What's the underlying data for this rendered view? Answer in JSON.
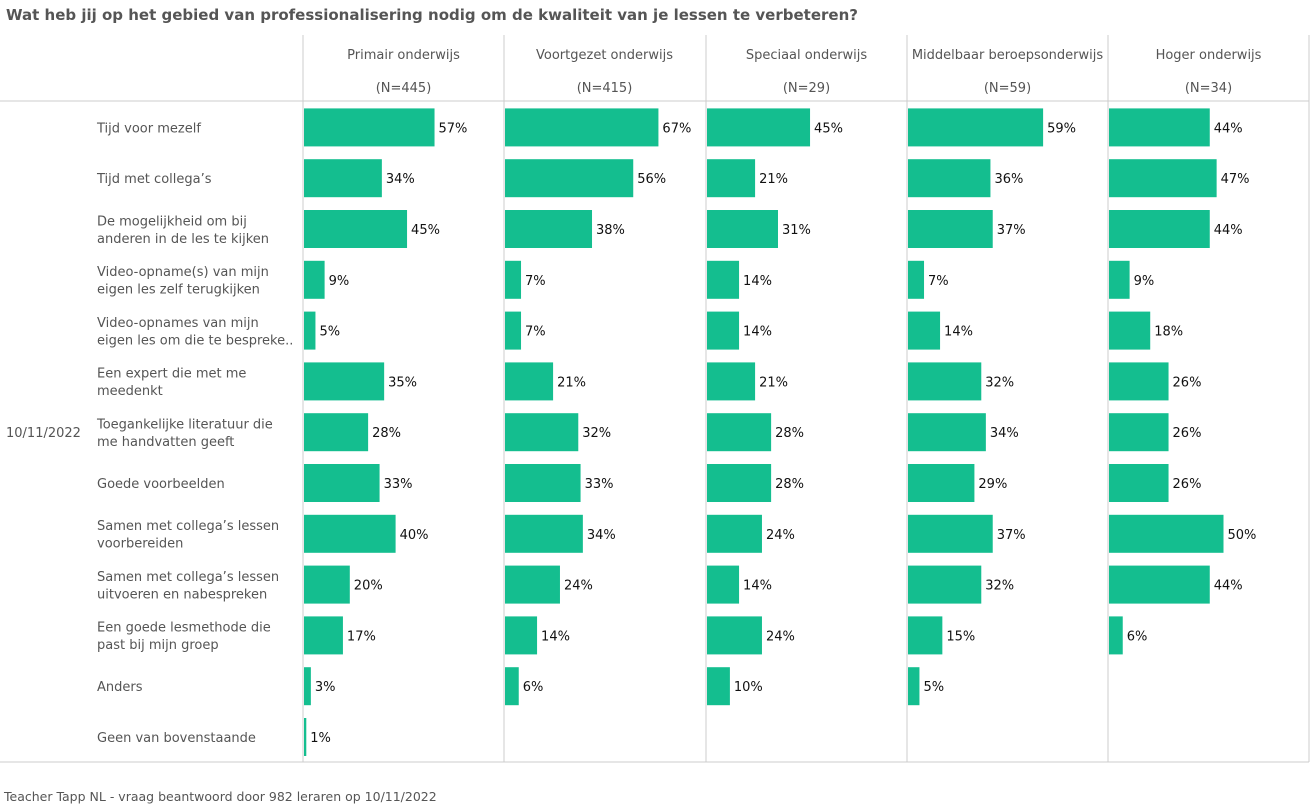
{
  "title": "Wat heb jij op het gebied van professionalisering nodig om de kwaliteit van je lessen te verbeteren?",
  "footer": "Teacher Tapp NL - vraag beantwoord door 982 leraren op 10/11/2022",
  "colors": {
    "bar": "#14BE8F",
    "grid": "#CCCCCC",
    "text": "#555555",
    "label": "#111111"
  },
  "chart_data": {
    "type": "bar",
    "orientation": "horizontal",
    "row_header": "10/11/2022",
    "categories": [
      [
        "Tijd voor mezelf"
      ],
      [
        "Tijd met collega’s"
      ],
      [
        "De mogelijkheid om bij",
        "anderen in de les te kijken"
      ],
      [
        "Video-opname(s) van mijn",
        "eigen les zelf terugkijken"
      ],
      [
        "Video-opnames van mijn",
        "eigen les om die te bespreke.."
      ],
      [
        "Een expert die met me",
        "meedenkt"
      ],
      [
        "Toegankelijke literatuur die",
        "me handvatten geeft"
      ],
      [
        "Goede voorbeelden"
      ],
      [
        "Samen met collega’s lessen",
        "voorbereiden"
      ],
      [
        "Samen met collega’s lessen",
        "uitvoeren en nabespreken"
      ],
      [
        "Een goede lesmethode die",
        "past bij mijn groep"
      ],
      [
        "Anders"
      ],
      [
        "Geen van bovenstaande"
      ]
    ],
    "value_suffix": "%",
    "xlim": [
      0,
      100
    ],
    "series": [
      {
        "name": "Primair onderwijs",
        "n": "(N=445)",
        "values": [
          57,
          34,
          45,
          9,
          5,
          35,
          28,
          33,
          40,
          20,
          17,
          3,
          1
        ]
      },
      {
        "name": "Voortgezet onderwijs",
        "n": "(N=415)",
        "values": [
          67,
          56,
          38,
          7,
          7,
          21,
          32,
          33,
          34,
          24,
          14,
          6,
          null
        ]
      },
      {
        "name": "Speciaal onderwijs",
        "n": "(N=29)",
        "values": [
          45,
          21,
          31,
          14,
          14,
          21,
          28,
          28,
          24,
          14,
          24,
          10,
          null
        ]
      },
      {
        "name": "Middelbaar beroepsonderwijs",
        "n": "(N=59)",
        "values": [
          59,
          36,
          37,
          7,
          14,
          32,
          34,
          29,
          37,
          32,
          15,
          5,
          null
        ]
      },
      {
        "name": "Hoger onderwijs",
        "n": "(N=34)",
        "values": [
          44,
          47,
          44,
          9,
          18,
          26,
          26,
          26,
          50,
          44,
          6,
          null,
          null
        ]
      }
    ]
  }
}
